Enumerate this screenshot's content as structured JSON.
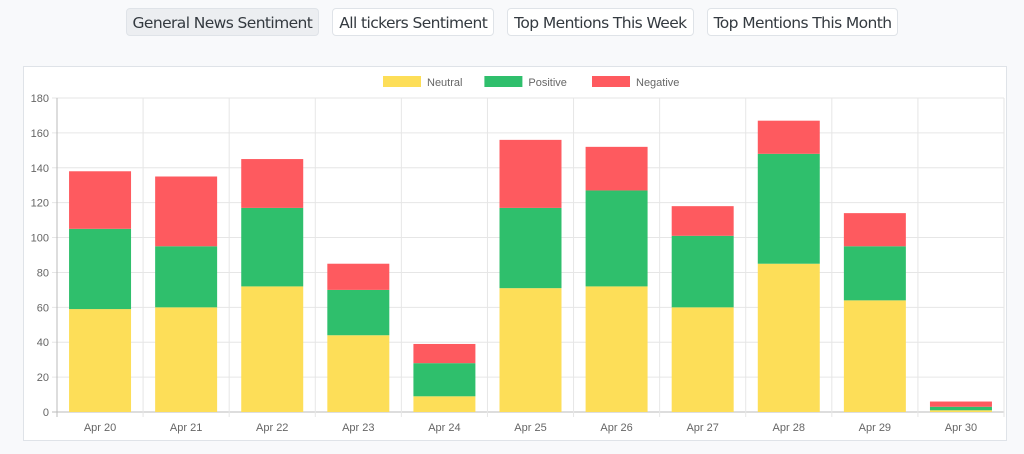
{
  "tabs": [
    {
      "label": "General News Sentiment",
      "active": true
    },
    {
      "label": "All tickers Sentiment",
      "active": false
    },
    {
      "label": "Top Mentions This Week",
      "active": false
    },
    {
      "label": "Top Mentions This Month",
      "active": false
    }
  ],
  "chart_data": {
    "type": "bar",
    "stacked": true,
    "title": "",
    "xlabel": "",
    "ylabel": "",
    "ylim": [
      0,
      180
    ],
    "yticks": [
      0,
      20,
      40,
      60,
      80,
      100,
      120,
      140,
      160,
      180
    ],
    "grid": true,
    "legend_position": "top",
    "categories": [
      "Apr 20",
      "Apr 21",
      "Apr 22",
      "Apr 23",
      "Apr 24",
      "Apr 25",
      "Apr 26",
      "Apr 27",
      "Apr 28",
      "Apr 29",
      "Apr 30"
    ],
    "series": [
      {
        "name": "Neutral",
        "color": "#fdde58",
        "values": [
          59,
          60,
          72,
          44,
          9,
          71,
          72,
          60,
          85,
          64,
          1
        ]
      },
      {
        "name": "Positive",
        "color": "#2fbf6c",
        "values": [
          46,
          35,
          45,
          26,
          19,
          46,
          55,
          41,
          63,
          31,
          2
        ]
      },
      {
        "name": "Negative",
        "color": "#fe5a5f",
        "values": [
          33,
          40,
          28,
          15,
          11,
          39,
          25,
          17,
          19,
          19,
          3
        ]
      }
    ]
  }
}
